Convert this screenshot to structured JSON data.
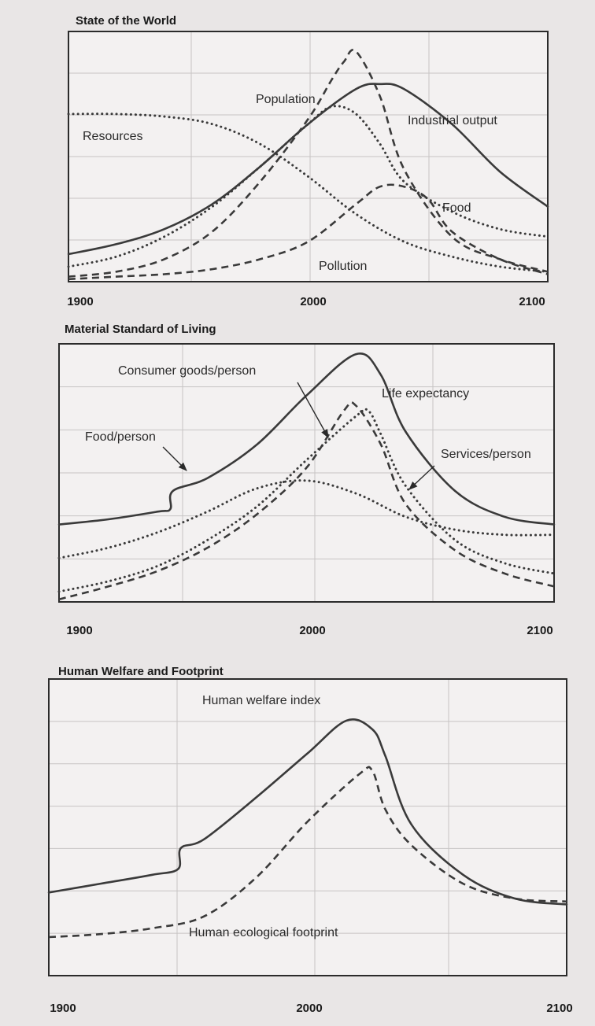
{
  "chart_data": [
    {
      "type": "line",
      "title": "State of the World",
      "xlabel": "",
      "ylabel": "",
      "xlim": [
        1900,
        2100
      ],
      "ylim": [
        0,
        100
      ],
      "x_ticks": [
        "1900",
        "2000",
        "2100"
      ],
      "y_ticks": false,
      "grid": true,
      "series": [
        {
          "name": "Population",
          "style": "solid",
          "x": [
            1900,
            1920,
            1940,
            1960,
            1980,
            2000,
            2020,
            2030,
            2040,
            2060,
            2080,
            2100
          ],
          "y": [
            11,
            15,
            21,
            31,
            46,
            63,
            77,
            79,
            77,
            63,
            44,
            30
          ]
        },
        {
          "name": "Industrial output",
          "style": "dashed",
          "x": [
            1900,
            1920,
            1940,
            1960,
            1980,
            2000,
            2010,
            2015,
            2020,
            2030,
            2040,
            2060,
            2080,
            2100
          ],
          "y": [
            2,
            4,
            9,
            20,
            40,
            65,
            81,
            88,
            92,
            74,
            45,
            18,
            9,
            4
          ]
        },
        {
          "name": "Food",
          "style": "dotted",
          "x": [
            1900,
            1920,
            1940,
            1960,
            1980,
            2000,
            2010,
            2020,
            2030,
            2040,
            2060,
            2080,
            2100
          ],
          "y": [
            6,
            10,
            18,
            30,
            46,
            63,
            70,
            67,
            55,
            40,
            28,
            21,
            18
          ]
        },
        {
          "name": "Resources",
          "style": "dotted",
          "x": [
            1900,
            1920,
            1940,
            1960,
            1980,
            2000,
            2020,
            2040,
            2060,
            2080,
            2100
          ],
          "y": [
            67,
            67,
            66,
            63,
            55,
            42,
            27,
            16,
            10,
            6,
            4
          ]
        },
        {
          "name": "Pollution",
          "style": "dashed",
          "x": [
            1900,
            1920,
            1940,
            1960,
            1980,
            2000,
            2020,
            2030,
            2040,
            2050,
            2060,
            2080,
            2100
          ],
          "y": [
            1,
            2,
            3,
            5,
            9,
            16,
            31,
            38,
            38,
            33,
            20,
            9,
            3
          ]
        }
      ]
    },
    {
      "type": "line",
      "title": "Material Standard of Living",
      "xlabel": "",
      "ylabel": "",
      "xlim": [
        1900,
        2100
      ],
      "ylim": [
        0,
        100
      ],
      "x_ticks": [
        "1900",
        "2000",
        "2100"
      ],
      "y_ticks": false,
      "grid": true,
      "series": [
        {
          "name": "Life expectancy",
          "style": "solid",
          "x": [
            1900,
            1920,
            1940,
            1945,
            1946,
            1960,
            1980,
            2000,
            2020,
            2030,
            2040,
            2060,
            2080,
            2100
          ],
          "y": [
            30,
            32,
            35,
            36,
            43,
            48,
            61,
            80,
            96,
            88,
            66,
            43,
            33,
            30
          ]
        },
        {
          "name": "Consumer goods/person",
          "style": "dashed",
          "x": [
            1900,
            1920,
            1940,
            1960,
            1980,
            2000,
            2015,
            2020,
            2030,
            2040,
            2060,
            2080,
            2100
          ],
          "y": [
            1,
            6,
            12,
            21,
            34,
            52,
            74,
            76,
            61,
            38,
            20,
            11,
            6
          ]
        },
        {
          "name": "Food/person",
          "style": "dotted",
          "x": [
            1900,
            1920,
            1940,
            1960,
            1980,
            2000,
            2020,
            2040,
            2060,
            2080,
            2100
          ],
          "y": [
            17,
            21,
            27,
            35,
            44,
            47,
            42,
            33,
            28,
            26,
            26
          ]
        },
        {
          "name": "Services/person",
          "style": "dotted",
          "x": [
            1900,
            1920,
            1940,
            1960,
            1980,
            2000,
            2020,
            2025,
            2030,
            2040,
            2060,
            2080,
            2100
          ],
          "y": [
            4,
            8,
            14,
            24,
            37,
            55,
            72,
            74,
            65,
            45,
            24,
            15,
            11
          ]
        }
      ]
    },
    {
      "type": "line",
      "title": "Human Welfare and Footprint",
      "xlabel": "",
      "ylabel": "",
      "xlim": [
        1900,
        2100
      ],
      "ylim": [
        0,
        100
      ],
      "x_ticks": [
        "1900",
        "2000",
        "2100"
      ],
      "y_ticks": false,
      "grid": true,
      "series": [
        {
          "name": "Human welfare index",
          "style": "solid",
          "x": [
            1900,
            1920,
            1940,
            1950,
            1951,
            1960,
            1980,
            2000,
            2015,
            2025,
            2030,
            2040,
            2060,
            2080,
            2100
          ],
          "y": [
            28,
            31,
            34,
            36,
            43,
            46,
            60,
            75,
            86,
            83,
            74,
            51,
            34,
            26,
            24
          ]
        },
        {
          "name": "Human ecological footprint",
          "style": "dashed",
          "x": [
            1900,
            1920,
            1940,
            1960,
            1980,
            2000,
            2020,
            2025,
            2030,
            2040,
            2060,
            2080,
            2100
          ],
          "y": [
            13,
            14,
            16,
            20,
            33,
            52,
            68,
            69,
            56,
            44,
            31,
            26,
            25
          ]
        }
      ]
    }
  ]
}
